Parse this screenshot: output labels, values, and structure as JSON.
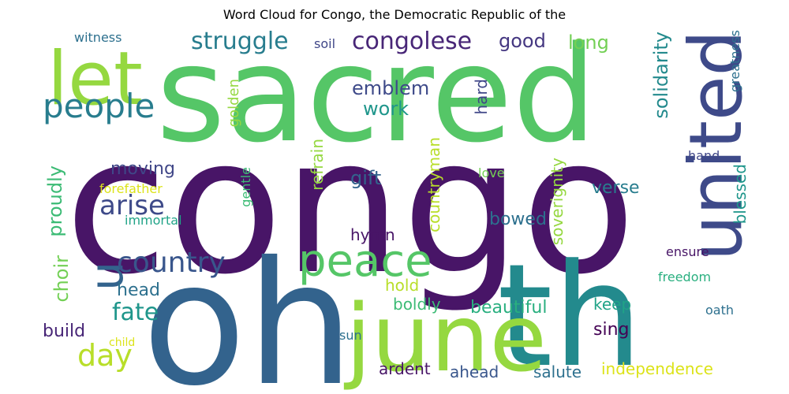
{
  "title": "Word Cloud for Congo, the Democratic Republic of the",
  "words": [
    {
      "text": "congo",
      "color": "#481567"
    },
    {
      "text": "sacred",
      "color": "#55c667"
    },
    {
      "text": "oh",
      "color": "#33638d"
    },
    {
      "text": "th",
      "color": "#238a8d"
    },
    {
      "text": "june",
      "color": "#95d840"
    },
    {
      "text": "united",
      "color": "#3e4a89"
    },
    {
      "text": "let",
      "color": "#95d840"
    },
    {
      "text": "peace",
      "color": "#55c667"
    },
    {
      "text": "u",
      "color": "#33638d"
    },
    {
      "text": "people",
      "color": "#287d8e"
    },
    {
      "text": "country",
      "color": "#39568c"
    },
    {
      "text": "struggle",
      "color": "#287d8e"
    },
    {
      "text": "congolese",
      "color": "#482677"
    },
    {
      "text": "arise",
      "color": "#3e4a89"
    },
    {
      "text": "day",
      "color": "#b8de29"
    },
    {
      "text": "fate",
      "color": "#1f968b"
    },
    {
      "text": "good",
      "color": "#453781"
    },
    {
      "text": "long",
      "color": "#73d055"
    },
    {
      "text": "emblem",
      "color": "#3e4a89"
    },
    {
      "text": "work",
      "color": "#1f968b"
    },
    {
      "text": "solidarity",
      "color": "#238a8d"
    },
    {
      "text": "greatness",
      "color": "#2d708e"
    },
    {
      "text": "witness",
      "color": "#2d708e"
    },
    {
      "text": "soil",
      "color": "#404788"
    },
    {
      "text": "golden",
      "color": "#95d840"
    },
    {
      "text": "hard",
      "color": "#404788"
    },
    {
      "text": "moving",
      "color": "#404788"
    },
    {
      "text": "proudly",
      "color": "#3cbb75"
    },
    {
      "text": "forefather",
      "color": "#dce319"
    },
    {
      "text": "gentle",
      "color": "#3cbb75"
    },
    {
      "text": "immortal",
      "color": "#20a387"
    },
    {
      "text": "gift",
      "color": "#33638d"
    },
    {
      "text": "refrain",
      "color": "#95d840"
    },
    {
      "text": "countryman",
      "color": "#b8de29"
    },
    {
      "text": "love",
      "color": "#73d055"
    },
    {
      "text": "soverignity",
      "color": "#95d840"
    },
    {
      "text": "verse",
      "color": "#287d8e"
    },
    {
      "text": "hand",
      "color": "#404788"
    },
    {
      "text": "blessed",
      "color": "#1f968b"
    },
    {
      "text": "bowed",
      "color": "#2d708e"
    },
    {
      "text": "hymn",
      "color": "#481567"
    },
    {
      "text": "choir",
      "color": "#73d055"
    },
    {
      "text": "head",
      "color": "#2d708e"
    },
    {
      "text": "hold",
      "color": "#b8de29"
    },
    {
      "text": "boldly",
      "color": "#3cbb75"
    },
    {
      "text": "beautiful",
      "color": "#29af7f"
    },
    {
      "text": "keep",
      "color": "#20a387"
    },
    {
      "text": "ensure",
      "color": "#481567"
    },
    {
      "text": "freedom",
      "color": "#29af7f"
    },
    {
      "text": "oath",
      "color": "#2d708e"
    },
    {
      "text": "build",
      "color": "#482677"
    },
    {
      "text": "child",
      "color": "#dce319"
    },
    {
      "text": "sing",
      "color": "#440154"
    },
    {
      "text": "sun",
      "color": "#2d708e"
    },
    {
      "text": "ardent",
      "color": "#481567"
    },
    {
      "text": "ahead",
      "color": "#39568c"
    },
    {
      "text": "salute",
      "color": "#2d708e"
    },
    {
      "text": "independence",
      "color": "#dce319"
    }
  ]
}
